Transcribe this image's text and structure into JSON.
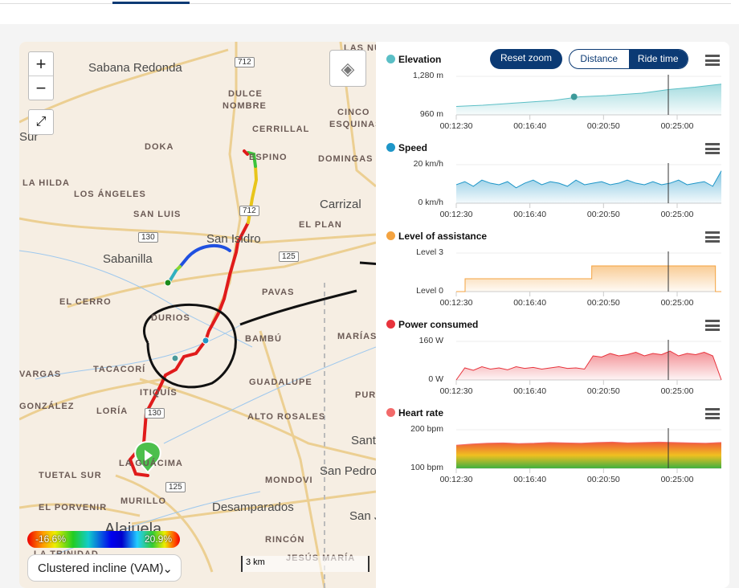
{
  "map": {
    "zoom_in": "+",
    "zoom_out": "−",
    "fullscreen_icon": "expand-icon",
    "layers_icon": "layers-icon",
    "labels": [
      "Sabana Redonda",
      "DULCE",
      "NOMBRE",
      "CERRILLAL",
      "CINCO",
      "ESQUINAS",
      "LAS NUB",
      "DOKA",
      "ESPINO",
      "DOMINGAS",
      "LA HILDA",
      "LOS ÁNGELES",
      "SAN LUIS",
      "Carrizal",
      "San Isidro",
      "EL PLAN",
      "Sabanilla",
      "PAVAS",
      "EL CERRO",
      "DURIOS",
      "BAMBÚ",
      "MARÍAS",
      "VARGAS",
      "TACACORÍ",
      "GUADALUPE",
      "ITIQUÍS",
      "GONZÁLEZ",
      "LORÍA",
      "ALTO ROSALES",
      "PURA",
      "LA GUÁCIMA",
      "Sant",
      "TUETAL SUR",
      "San Pedro",
      "MONDOVI",
      "EL PORVENIR",
      "MURILLO",
      "Desamparados",
      "San J",
      "Alajuela",
      "RINCÓN",
      "LA TRINIDAD",
      "JESÚS MARÍA",
      "Sur"
    ],
    "road_shields": [
      "712",
      "712",
      "130",
      "125",
      "130",
      "125"
    ],
    "legend": {
      "min": "-16.6%",
      "max": "20.9%"
    },
    "mode_select": "Clustered incline (VAM)",
    "scale": "3 km"
  },
  "charts_header": {
    "reset_zoom": "Reset zoom",
    "distance": "Distance",
    "ride_time": "Ride time",
    "active": "Ride time"
  },
  "chart_data": [
    {
      "type": "area",
      "title": "Elevation",
      "color": "#5bbfc6",
      "yticks": [
        "1,280 m",
        "960 m"
      ],
      "ylim": [
        960,
        1280
      ],
      "xticks": [
        "00:12:30",
        "00:16:40",
        "00:20:50",
        "00:25:00"
      ],
      "x": [
        "00:12:30",
        "00:14:00",
        "00:16:00",
        "00:18:00",
        "00:19:30",
        "00:21:00",
        "00:23:00",
        "00:24:30",
        "00:26:00",
        "00:27:30"
      ],
      "values": [
        1030,
        1040,
        1060,
        1080,
        1110,
        1120,
        1140,
        1170,
        1190,
        1215
      ],
      "marker": {
        "x": "00:19:10",
        "y": 1110
      },
      "cursor": "00:24:30"
    },
    {
      "type": "area",
      "title": "Speed",
      "color": "#1e96c8",
      "yticks": [
        "20 km/h",
        "0 km/h"
      ],
      "ylim": [
        0,
        25
      ],
      "xticks": [
        "00:12:30",
        "00:16:40",
        "00:20:50",
        "00:25:00"
      ],
      "values": [
        12,
        14,
        11,
        15,
        13,
        12,
        14,
        10,
        13,
        15,
        12,
        14,
        13,
        11,
        15,
        12,
        13,
        14,
        12,
        13,
        15,
        13,
        12,
        14,
        12,
        13,
        15,
        12,
        13,
        14,
        11,
        21
      ],
      "cursor": "00:24:30"
    },
    {
      "type": "area",
      "title": "Level of assistance",
      "color": "#f4a340",
      "yticks": [
        "Level 3",
        "Level 0"
      ],
      "ylim": [
        0,
        3
      ],
      "xticks": [
        "00:12:30",
        "00:16:40",
        "00:20:50",
        "00:25:00"
      ],
      "steps": [
        {
          "from": "00:12:30",
          "to": "00:13:00",
          "level": 0
        },
        {
          "from": "00:13:00",
          "to": "00:20:10",
          "level": 1
        },
        {
          "from": "00:20:10",
          "to": "00:27:10",
          "level": 2
        },
        {
          "from": "00:27:10",
          "to": "00:27:30",
          "level": 0
        }
      ],
      "cursor": "00:24:30"
    },
    {
      "type": "area",
      "title": "Power consumed",
      "color": "#e8333c",
      "yticks": [
        "160 W",
        "0 W"
      ],
      "ylim": [
        0,
        160
      ],
      "xticks": [
        "00:12:30",
        "00:16:40",
        "00:20:50",
        "00:25:00"
      ],
      "values": [
        0,
        50,
        40,
        55,
        45,
        50,
        42,
        55,
        48,
        52,
        45,
        50,
        55,
        48,
        50,
        45,
        100,
        95,
        110,
        100,
        105,
        115,
        100,
        110,
        105,
        120,
        100,
        110,
        105,
        115,
        100,
        0
      ],
      "cursor": "00:24:30"
    },
    {
      "type": "area",
      "title": "Heart rate",
      "color": "#f26a6a",
      "yticks": [
        "200 bpm",
        "100 bpm"
      ],
      "ylim": [
        100,
        200
      ],
      "xticks": [
        "00:12:30",
        "00:16:40",
        "00:20:50",
        "00:25:00"
      ],
      "values": [
        160,
        163,
        165,
        166,
        164,
        165,
        167,
        166,
        165,
        167,
        168,
        166,
        167,
        168,
        167,
        166,
        165,
        167
      ],
      "cursor": "00:24:30"
    }
  ]
}
